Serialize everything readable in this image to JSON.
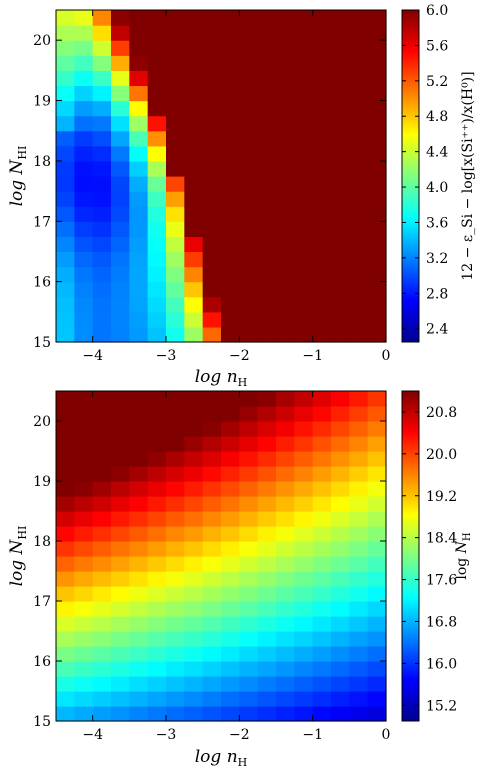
{
  "chart_data": [
    {
      "type": "heatmap",
      "xlabel": "log n_H",
      "ylabel": "log N_HI",
      "xlim": [
        -4.5,
        0
      ],
      "ylim": [
        15,
        20.5
      ],
      "xticks": [
        "−4",
        "−3",
        "−2",
        "−1",
        "0"
      ],
      "yticks": [
        "15",
        "16",
        "17",
        "18",
        "19",
        "20"
      ],
      "colorbar": {
        "label": "12 − ε_Si − log[x(Si⁺⁺)/x(H⁰)]",
        "range": [
          2.25,
          6.0
        ],
        "ticks": [
          "2.4",
          "2.8",
          "3.2",
          "3.6",
          "4.0",
          "4.4",
          "4.8",
          "5.2",
          "5.6",
          "6.0"
        ],
        "colormap": "jet"
      },
      "grid": {
        "nx": 18,
        "ny": 22,
        "x_edges": [
          -4.5,
          0
        ],
        "y_edges": [
          15,
          20.5
        ]
      },
      "model": "Si++/H0 ionization correction; saturates at 6.0 for log n_H above a ridge near −2.2 (low N_HI) to −3.4 (high N_HI)"
    },
    {
      "type": "heatmap",
      "xlabel": "log n_H",
      "ylabel": "log N_HI",
      "xlim": [
        -4.5,
        0
      ],
      "ylim": [
        15,
        20.5
      ],
      "xticks": [
        "−4",
        "−3",
        "−2",
        "−1",
        "0"
      ],
      "yticks": [
        "15",
        "16",
        "17",
        "18",
        "19",
        "20"
      ],
      "colorbar": {
        "label": "log N_H",
        "range": [
          14.9,
          21.2
        ],
        "ticks": [
          "15.2",
          "16.0",
          "16.8",
          "17.6",
          "18.4",
          "19.2",
          "20.0",
          "20.8"
        ],
        "colormap": "jet"
      },
      "grid": {
        "nx": 18,
        "ny": 22,
        "x_edges": [
          -4.5,
          0
        ],
        "y_edges": [
          15,
          20.5
        ]
      },
      "model": "total hydrogen column; ~21 at (−4.5, 20.5), ~15 at (0, 15)"
    }
  ]
}
